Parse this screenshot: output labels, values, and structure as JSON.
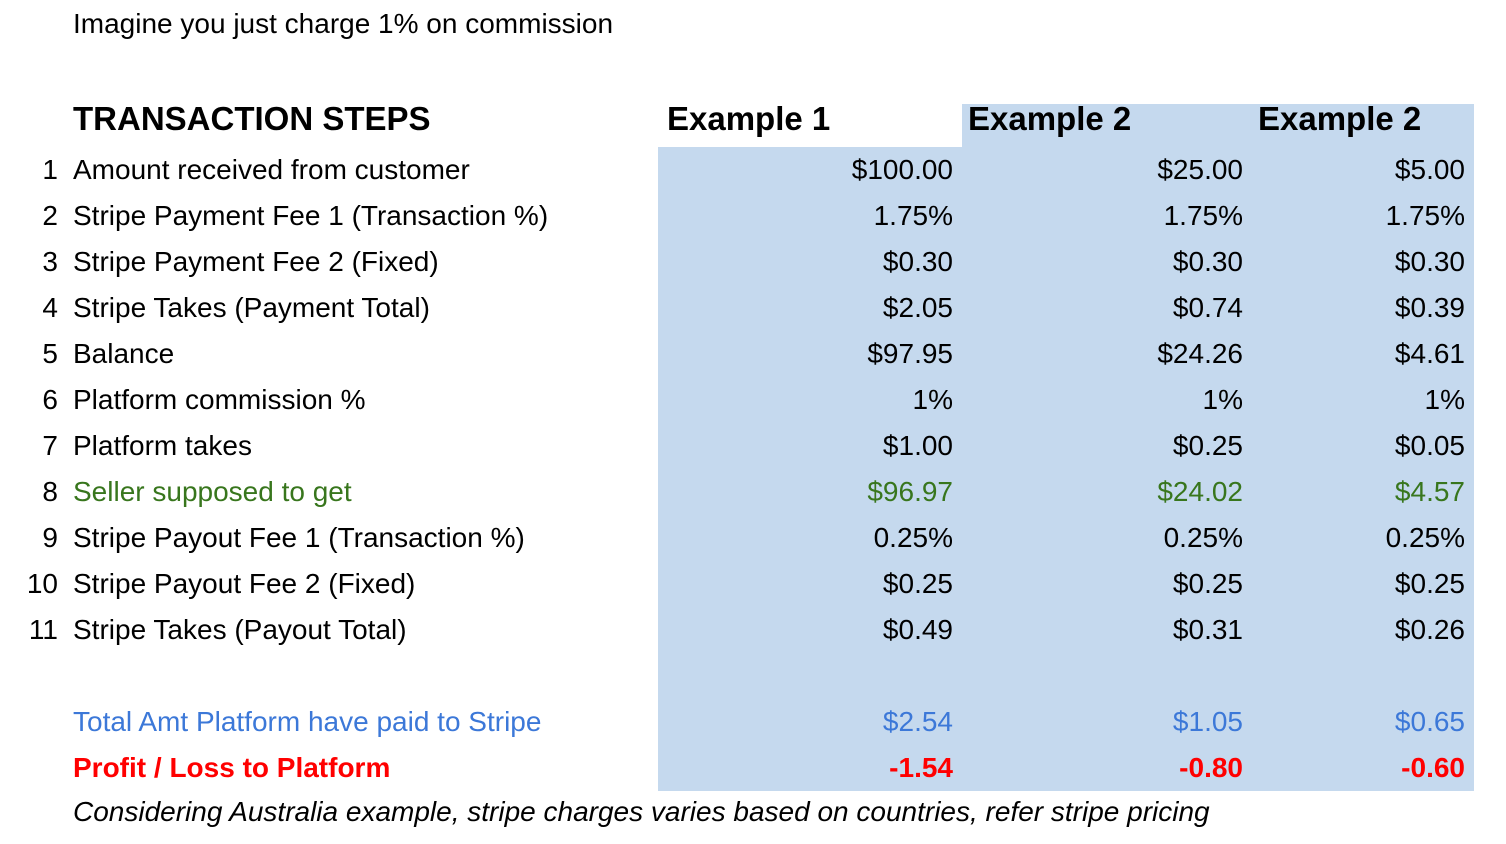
{
  "intro": "Imagine you just charge 1% on commission",
  "headers": {
    "steps": "TRANSACTION STEPS",
    "col1": "Example 1",
    "col2": "Example 2",
    "col3": "Example 2"
  },
  "rows": [
    {
      "num": "1",
      "label": "Amount received from customer",
      "v1": "$100.00",
      "v2": "$25.00",
      "v3": "$5.00"
    },
    {
      "num": "2",
      "label": "Stripe Payment Fee 1 (Transaction %)",
      "v1": "1.75%",
      "v2": "1.75%",
      "v3": "1.75%"
    },
    {
      "num": "3",
      "label": "Stripe Payment Fee 2 (Fixed)",
      "v1": "$0.30",
      "v2": "$0.30",
      "v3": "$0.30"
    },
    {
      "num": "4",
      "label": "Stripe Takes (Payment Total)",
      "v1": "$2.05",
      "v2": "$0.74",
      "v3": "$0.39"
    },
    {
      "num": "5",
      "label": "Balance",
      "v1": "$97.95",
      "v2": "$24.26",
      "v3": "$4.61"
    },
    {
      "num": "6",
      "label": "Platform commission %",
      "v1": "1%",
      "v2": "1%",
      "v3": "1%"
    },
    {
      "num": "7",
      "label": "Platform takes",
      "v1": "$1.00",
      "v2": "$0.25",
      "v3": "$0.05"
    },
    {
      "num": "8",
      "label": "Seller supposed to get",
      "v1": "$96.97",
      "v2": "$24.02",
      "v3": "$4.57"
    },
    {
      "num": "9",
      "label": "Stripe Payout Fee 1 (Transaction %)",
      "v1": "0.25%",
      "v2": "0.25%",
      "v3": "0.25%"
    },
    {
      "num": "10",
      "label": "Stripe Payout Fee 2 (Fixed)",
      "v1": "$0.25",
      "v2": "$0.25",
      "v3": "$0.25"
    },
    {
      "num": "11",
      "label": "Stripe Takes (Payout Total)",
      "v1": "$0.49",
      "v2": "$0.31",
      "v3": "$0.26"
    }
  ],
  "total": {
    "label": "Total Amt Platform have paid to Stripe",
    "v1": "$2.54",
    "v2": "$1.05",
    "v3": "$0.65"
  },
  "profit": {
    "label": "Profit / Loss to Platform",
    "v1": "-1.54",
    "v2": "-0.80",
    "v3": "-0.60"
  },
  "note": "Considering Australia example, stripe charges varies based on countries, refer stripe pricing",
  "colors": {
    "highlight_bg": "#c5d9ee",
    "seller_green": "#38761d",
    "total_blue": "#3c78d8",
    "profit_red": "#ff0000"
  }
}
